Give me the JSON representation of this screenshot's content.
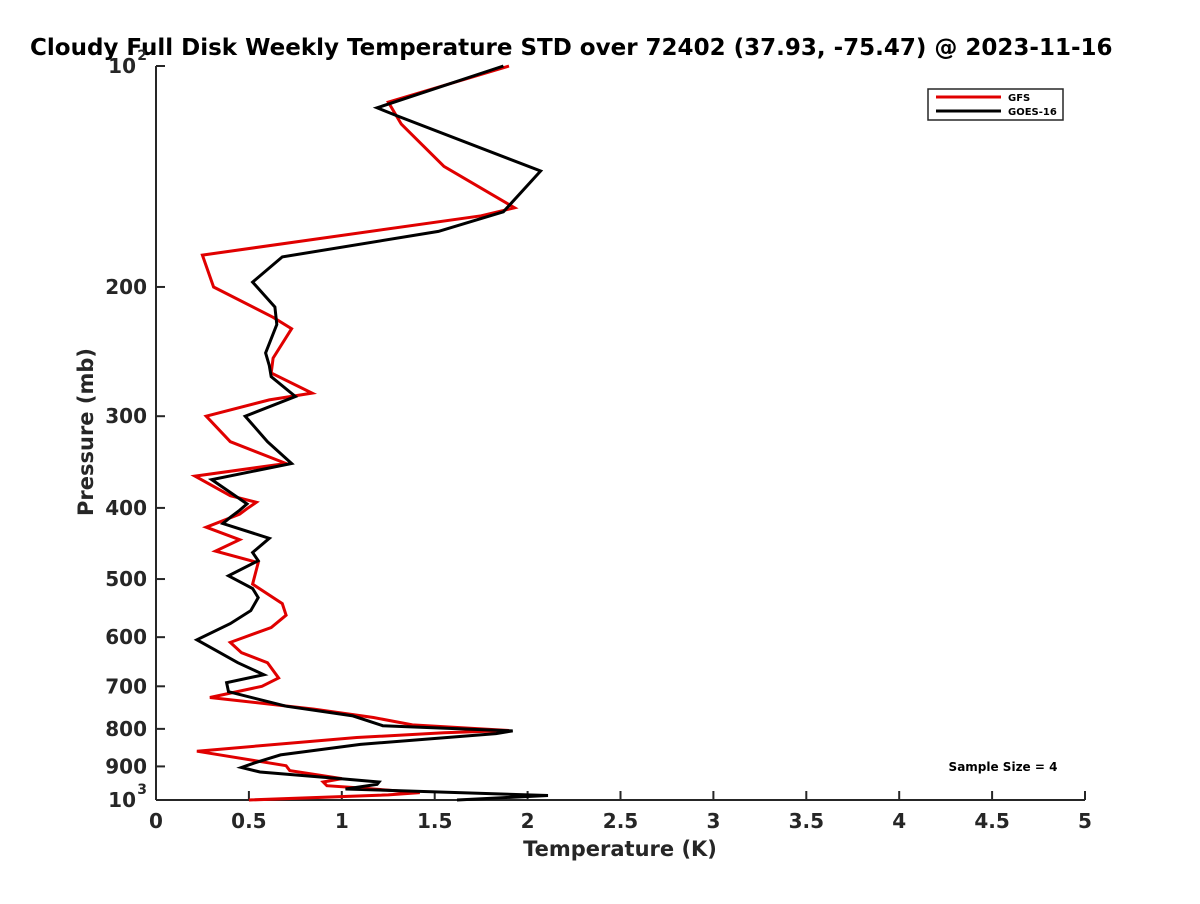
{
  "chart_data": {
    "type": "line",
    "title": "Cloudy Full Disk Weekly Temperature STD over 72402 (37.93, -75.47) @ 2023-11-16",
    "xlabel": "Temperature (K)",
    "ylabel": "Pressure (mb)",
    "xlim": [
      0,
      5
    ],
    "ylim": [
      100,
      1000
    ],
    "yscale": "log",
    "y_reversed": true,
    "grid": false,
    "legend_position": "top-right",
    "x_ticks": [
      {
        "value": 0,
        "label": "0"
      },
      {
        "value": 0.5,
        "label": "0.5"
      },
      {
        "value": 1,
        "label": "1"
      },
      {
        "value": 1.5,
        "label": "1.5"
      },
      {
        "value": 2,
        "label": "2"
      },
      {
        "value": 2.5,
        "label": "2.5"
      },
      {
        "value": 3,
        "label": "3"
      },
      {
        "value": 3.5,
        "label": "3.5"
      },
      {
        "value": 4,
        "label": "4"
      },
      {
        "value": 4.5,
        "label": "4.5"
      },
      {
        "value": 5,
        "label": "5"
      }
    ],
    "y_ticks": [
      {
        "value": 100,
        "label": "10",
        "sup": "2"
      },
      {
        "value": 200,
        "label": "200"
      },
      {
        "value": 300,
        "label": "300"
      },
      {
        "value": 400,
        "label": "400"
      },
      {
        "value": 500,
        "label": "500"
      },
      {
        "value": 600,
        "label": "600"
      },
      {
        "value": 700,
        "label": "700"
      },
      {
        "value": 800,
        "label": "800"
      },
      {
        "value": 900,
        "label": "900"
      },
      {
        "value": 1000,
        "label": "10",
        "sup": "3"
      }
    ],
    "annotation": "Sample Size = 4",
    "series": [
      {
        "name": "GFS",
        "color": "#e00000",
        "points": [
          [
            1.9,
            100
          ],
          [
            1.25,
            112
          ],
          [
            1.32,
            120
          ],
          [
            1.55,
            137
          ],
          [
            1.93,
            156
          ],
          [
            1.75,
            160
          ],
          [
            0.25,
            181
          ],
          [
            0.31,
            200
          ],
          [
            0.63,
            220
          ],
          [
            0.73,
            228
          ],
          [
            0.63,
            250
          ],
          [
            0.62,
            262
          ],
          [
            0.84,
            279
          ],
          [
            0.61,
            285
          ],
          [
            0.27,
            300
          ],
          [
            0.4,
            325
          ],
          [
            0.7,
            348
          ],
          [
            0.21,
            362
          ],
          [
            0.4,
            385
          ],
          [
            0.54,
            393
          ],
          [
            0.49,
            401
          ],
          [
            0.45,
            408
          ],
          [
            0.27,
            425
          ],
          [
            0.45,
            442
          ],
          [
            0.32,
            458
          ],
          [
            0.55,
            475
          ],
          [
            0.52,
            508
          ],
          [
            0.68,
            540
          ],
          [
            0.7,
            560
          ],
          [
            0.62,
            582
          ],
          [
            0.4,
            610
          ],
          [
            0.46,
            630
          ],
          [
            0.6,
            650
          ],
          [
            0.66,
            682
          ],
          [
            0.57,
            700
          ],
          [
            0.29,
            725
          ],
          [
            0.85,
            752
          ],
          [
            1.17,
            772
          ],
          [
            1.38,
            790
          ],
          [
            1.9,
            804
          ],
          [
            1.55,
            810
          ],
          [
            1.08,
            822
          ],
          [
            0.22,
            858
          ],
          [
            0.7,
            898
          ],
          [
            0.72,
            912
          ],
          [
            1.0,
            935
          ],
          [
            0.9,
            945
          ],
          [
            0.92,
            956
          ],
          [
            1.08,
            962
          ],
          [
            1.42,
            977
          ],
          [
            1.25,
            984
          ],
          [
            0.5,
            1000
          ]
        ]
      },
      {
        "name": "GOES-16",
        "color": "#000000",
        "points": [
          [
            1.87,
            100
          ],
          [
            1.19,
            114
          ],
          [
            1.3,
            117
          ],
          [
            2.07,
            139
          ],
          [
            1.87,
            158
          ],
          [
            1.52,
            168
          ],
          [
            0.68,
            182
          ],
          [
            0.52,
            197
          ],
          [
            0.64,
            213
          ],
          [
            0.65,
            225
          ],
          [
            0.59,
            246
          ],
          [
            0.61,
            256
          ],
          [
            0.62,
            265
          ],
          [
            0.75,
            282
          ],
          [
            0.48,
            300
          ],
          [
            0.6,
            325
          ],
          [
            0.73,
            348
          ],
          [
            0.3,
            366
          ],
          [
            0.49,
            395
          ],
          [
            0.45,
            403
          ],
          [
            0.4,
            412
          ],
          [
            0.36,
            420
          ],
          [
            0.61,
            440
          ],
          [
            0.52,
            460
          ],
          [
            0.55,
            472
          ],
          [
            0.39,
            495
          ],
          [
            0.52,
            515
          ],
          [
            0.55,
            530
          ],
          [
            0.51,
            552
          ],
          [
            0.4,
            575
          ],
          [
            0.22,
            605
          ],
          [
            0.32,
            625
          ],
          [
            0.44,
            650
          ],
          [
            0.58,
            675
          ],
          [
            0.38,
            692
          ],
          [
            0.39,
            712
          ],
          [
            0.7,
            745
          ],
          [
            1.06,
            768
          ],
          [
            1.22,
            792
          ],
          [
            1.92,
            805
          ],
          [
            1.83,
            812
          ],
          [
            1.1,
            840
          ],
          [
            0.67,
            868
          ],
          [
            0.53,
            890
          ],
          [
            0.46,
            903
          ],
          [
            0.56,
            916
          ],
          [
            0.99,
            935
          ],
          [
            1.2,
            945
          ],
          [
            1.19,
            952
          ],
          [
            1.02,
            966
          ],
          [
            2.11,
            986
          ],
          [
            1.62,
            1000
          ]
        ]
      }
    ]
  }
}
